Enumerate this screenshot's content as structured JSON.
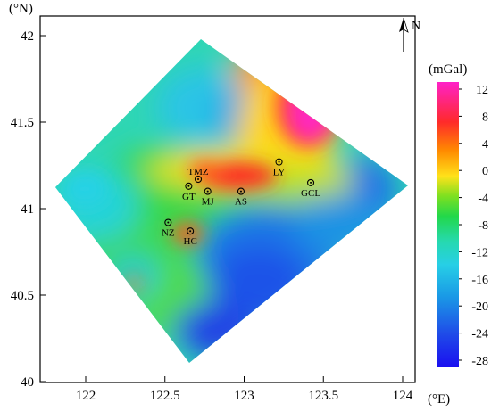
{
  "map": {
    "y_unit_label": "(°N)",
    "x_unit_label": "(°E)",
    "north_label": "N",
    "x_ticks": [
      "122",
      "122.5",
      "123",
      "123.5",
      "124"
    ],
    "y_ticks": [
      "42",
      "41.5",
      "41",
      "40.5",
      "40"
    ],
    "stations": [
      {
        "id": "TMZ",
        "label": "TMZ",
        "lon": 122.71,
        "lat": 41.17
      },
      {
        "id": "GT",
        "label": "GT",
        "lon": 122.65,
        "lat": 41.13
      },
      {
        "id": "MJ",
        "label": "MJ",
        "lon": 122.77,
        "lat": 41.1
      },
      {
        "id": "AS",
        "label": "AS",
        "lon": 122.98,
        "lat": 41.1
      },
      {
        "id": "LY",
        "label": "LY",
        "lon": 123.22,
        "lat": 41.27
      },
      {
        "id": "GCL",
        "label": "GCL",
        "lon": 123.42,
        "lat": 41.15
      },
      {
        "id": "NZ",
        "label": "NZ",
        "lon": 122.52,
        "lat": 40.92
      },
      {
        "id": "HC",
        "label": "HC",
        "lon": 122.66,
        "lat": 40.87
      }
    ]
  },
  "colorbar": {
    "unit": "(mGal)",
    "ticks": [
      "12",
      "8",
      "4",
      "0",
      "-4",
      "-8",
      "-12",
      "-16",
      "-20",
      "-24",
      "-28"
    ],
    "colors": [
      "#ff21c8",
      "#ff2a2a",
      "#ff8a00",
      "#d8e21a",
      "#28d84a",
      "#2fe07a",
      "#27d6d9",
      "#1aa6e3",
      "#1d78e6",
      "#1f3fe8",
      "#1a0ef0"
    ]
  }
}
